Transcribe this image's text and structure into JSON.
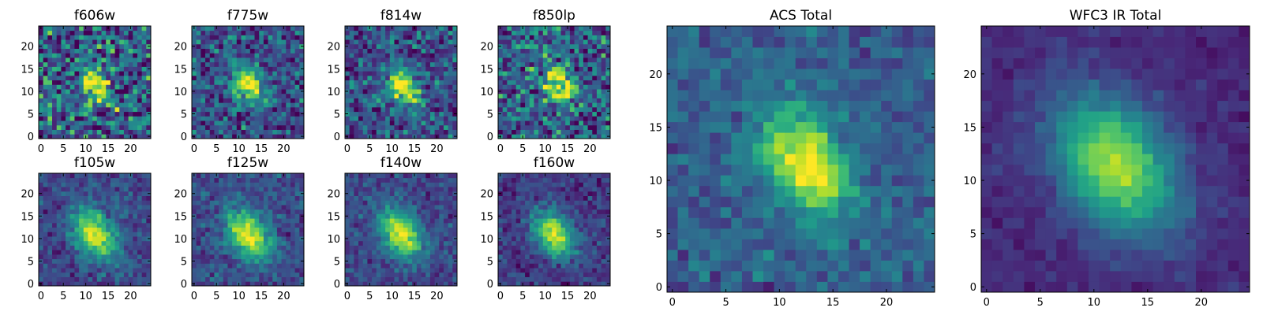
{
  "chart_data": [
    {
      "type": "heatmap",
      "title": "f606w",
      "grid_size": 25,
      "xticks": [
        0,
        5,
        10,
        15,
        20
      ],
      "yticks": [
        0,
        5,
        10,
        15,
        20
      ],
      "xlim": [
        -0.5,
        24.5
      ],
      "ylim": [
        -0.5,
        24.5
      ],
      "colormap": "viridis",
      "source_center": [
        12,
        12
      ],
      "source_angle_deg": -55,
      "source_sigma": [
        2.8,
        1.9
      ],
      "noise": 0.45,
      "background": 0.3,
      "seed": 11
    },
    {
      "type": "heatmap",
      "title": "f775w",
      "grid_size": 25,
      "xticks": [
        0,
        5,
        10,
        15,
        20
      ],
      "yticks": [
        0,
        5,
        10,
        15,
        20
      ],
      "xlim": [
        -0.5,
        24.5
      ],
      "ylim": [
        -0.5,
        24.5
      ],
      "colormap": "viridis",
      "source_center": [
        12,
        11.5
      ],
      "source_angle_deg": -55,
      "source_sigma": [
        3.2,
        2.0
      ],
      "noise": 0.3,
      "background": 0.25,
      "seed": 23
    },
    {
      "type": "heatmap",
      "title": "f814w",
      "grid_size": 25,
      "xticks": [
        0,
        5,
        10,
        15,
        20
      ],
      "yticks": [
        0,
        5,
        10,
        15,
        20
      ],
      "xlim": [
        -0.5,
        24.5
      ],
      "ylim": [
        -0.5,
        24.5
      ],
      "colormap": "viridis",
      "source_center": [
        12.5,
        11
      ],
      "source_angle_deg": -55,
      "source_sigma": [
        3.3,
        2.0
      ],
      "noise": 0.3,
      "background": 0.25,
      "seed": 37
    },
    {
      "type": "heatmap",
      "title": "f850lp",
      "grid_size": 25,
      "xticks": [
        0,
        5,
        10,
        15,
        20
      ],
      "yticks": [
        0,
        5,
        10,
        15,
        20
      ],
      "xlim": [
        -0.5,
        24.5
      ],
      "ylim": [
        -0.5,
        24.5
      ],
      "colormap": "viridis",
      "source_center": [
        13,
        11.5
      ],
      "source_angle_deg": -55,
      "source_sigma": [
        3.0,
        2.0
      ],
      "noise": 0.38,
      "background": 0.3,
      "seed": 41
    },
    {
      "type": "heatmap",
      "title": "f105w",
      "grid_size": 25,
      "xticks": [
        0,
        5,
        10,
        15,
        20
      ],
      "yticks": [
        0,
        5,
        10,
        15,
        20
      ],
      "xlim": [
        -0.5,
        24.5
      ],
      "ylim": [
        -0.5,
        24.5
      ],
      "colormap": "viridis",
      "source_center": [
        12,
        11
      ],
      "source_angle_deg": -55,
      "source_sigma": [
        4.2,
        2.8
      ],
      "noise": 0.16,
      "background": 0.22,
      "seed": 53
    },
    {
      "type": "heatmap",
      "title": "f125w",
      "grid_size": 25,
      "xticks": [
        0,
        5,
        10,
        15,
        20
      ],
      "yticks": [
        0,
        5,
        10,
        15,
        20
      ],
      "xlim": [
        -0.5,
        24.5
      ],
      "ylim": [
        -0.5,
        24.5
      ],
      "colormap": "viridis",
      "source_center": [
        12,
        11
      ],
      "source_angle_deg": -55,
      "source_sigma": [
        4.3,
        2.8
      ],
      "noise": 0.16,
      "background": 0.24,
      "seed": 67
    },
    {
      "type": "heatmap",
      "title": "f140w",
      "grid_size": 25,
      "xticks": [
        0,
        5,
        10,
        15,
        20
      ],
      "yticks": [
        0,
        5,
        10,
        15,
        20
      ],
      "xlim": [
        -0.5,
        24.5
      ],
      "ylim": [
        -0.5,
        24.5
      ],
      "colormap": "viridis",
      "source_center": [
        12,
        11
      ],
      "source_angle_deg": -55,
      "source_sigma": [
        4.1,
        2.7
      ],
      "noise": 0.15,
      "background": 0.22,
      "seed": 79
    },
    {
      "type": "heatmap",
      "title": "f160w",
      "grid_size": 25,
      "xticks": [
        0,
        5,
        10,
        15,
        20
      ],
      "yticks": [
        0,
        5,
        10,
        15,
        20
      ],
      "xlim": [
        -0.5,
        24.5
      ],
      "ylim": [
        -0.5,
        24.5
      ],
      "colormap": "viridis",
      "source_center": [
        12,
        11
      ],
      "source_angle_deg": -55,
      "source_sigma": [
        4.0,
        2.6
      ],
      "noise": 0.15,
      "background": 0.18,
      "seed": 83
    },
    {
      "type": "heatmap",
      "title": "ACS Total",
      "grid_size": 25,
      "xticks": [
        0,
        5,
        10,
        15,
        20
      ],
      "yticks": [
        0,
        5,
        10,
        15,
        20
      ],
      "xlim": [
        -0.5,
        24.5
      ],
      "ylim": [
        -0.5,
        24.5
      ],
      "colormap": "viridis",
      "source_center": [
        12.5,
        11.5
      ],
      "source_angle_deg": -55,
      "source_sigma": [
        3.6,
        2.3
      ],
      "noise": 0.15,
      "background": 0.3,
      "seed": 97
    },
    {
      "type": "heatmap",
      "title": "WFC3 IR Total",
      "grid_size": 25,
      "xticks": [
        0,
        5,
        10,
        15,
        20
      ],
      "yticks": [
        0,
        5,
        10,
        15,
        20
      ],
      "xlim": [
        -0.5,
        24.5
      ],
      "ylim": [
        -0.5,
        24.5
      ],
      "colormap": "viridis",
      "source_center": [
        12,
        11.5
      ],
      "source_angle_deg": -55,
      "source_sigma": [
        5.0,
        3.4
      ],
      "noise": 0.07,
      "background": 0.12,
      "seed": 101
    }
  ]
}
